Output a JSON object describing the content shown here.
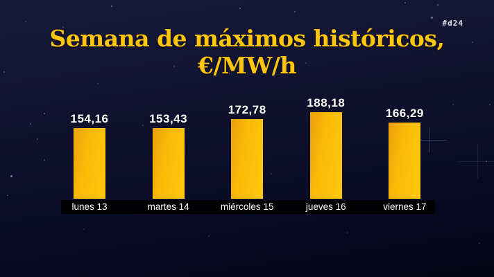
{
  "header": {
    "hashtag": "#d24"
  },
  "chart_data": {
    "type": "bar",
    "title": "Semana de máximos históricos, €/MW/h",
    "categories": [
      "lunes 13",
      "martes 14",
      "miércoles 15",
      "jueves 16",
      "viernes 17"
    ],
    "values": [
      154.16,
      153.43,
      172.78,
      188.18,
      166.29
    ],
    "value_labels": [
      "154,16",
      "153,43",
      "172,78",
      "188,18",
      "166,29"
    ],
    "ylabel": "€/MW/h",
    "xlabel": "",
    "ylim": [
      0,
      190
    ],
    "grid": false,
    "legend_position": "none"
  },
  "colors": {
    "bar": "#f9ba08",
    "title": "#ffc60d",
    "value_label": "#ffffff",
    "axis_strip": "#010103",
    "background_top": "#171838",
    "background_bottom": "#040515"
  }
}
